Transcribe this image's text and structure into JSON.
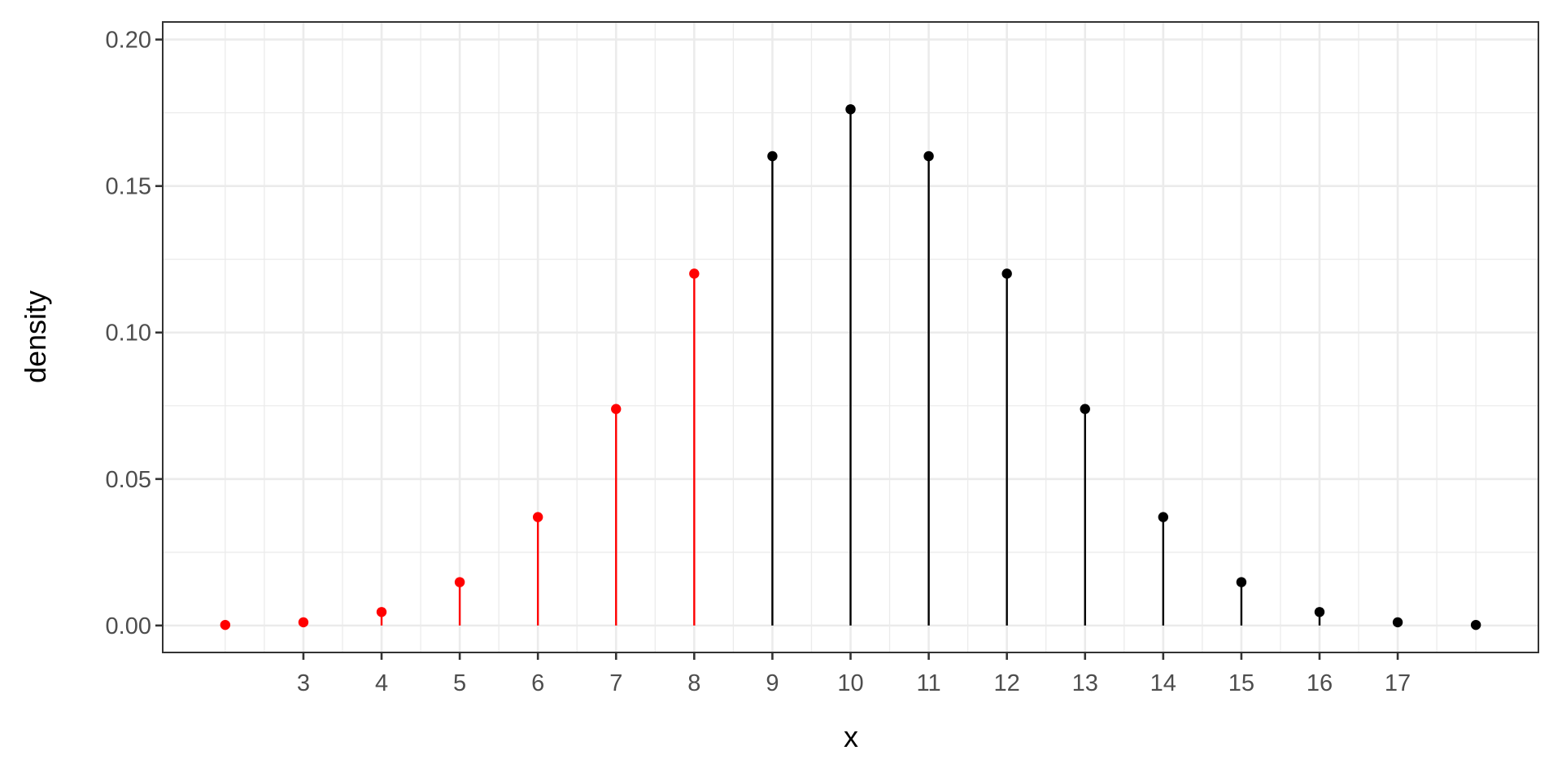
{
  "chart_data": {
    "type": "lollipop",
    "title": "",
    "xlabel": "x",
    "ylabel": "density",
    "xlim": [
      1.2,
      18.8
    ],
    "ylim": [
      -0.0092,
      0.206
    ],
    "x_ticks": [
      3,
      4,
      5,
      6,
      7,
      8,
      9,
      10,
      11,
      12,
      13,
      14,
      15,
      16,
      17
    ],
    "x_tick_labels": [
      "3",
      "4",
      "5",
      "6",
      "7",
      "8",
      "9",
      "10",
      "11",
      "12",
      "13",
      "14",
      "15",
      "16",
      "17"
    ],
    "x_minor_breaks": [
      2,
      2.5,
      3.5,
      4.5,
      5.5,
      6.5,
      7.5,
      8.5,
      9.5,
      10.5,
      11.5,
      12.5,
      13.5,
      14.5,
      15.5,
      16.5,
      17.5,
      18
    ],
    "y_ticks": [
      0,
      0.05,
      0.1,
      0.15,
      0.2
    ],
    "y_tick_labels": [
      "0.00",
      "0.05",
      "0.10",
      "0.15",
      "0.20"
    ],
    "y_minor_breaks": [
      0.025,
      0.075,
      0.125,
      0.175
    ],
    "grid": true,
    "theme": "bw",
    "colors": {
      "highlight": "#ff0000",
      "default": "#000000",
      "grid": "#ebebeb",
      "border": "#333333"
    },
    "points": [
      {
        "x": 2,
        "y": 0.0002,
        "color": "#ff0000"
      },
      {
        "x": 3,
        "y": 0.0011,
        "color": "#ff0000"
      },
      {
        "x": 4,
        "y": 0.0046,
        "color": "#ff0000"
      },
      {
        "x": 5,
        "y": 0.0148,
        "color": "#ff0000"
      },
      {
        "x": 6,
        "y": 0.037,
        "color": "#ff0000"
      },
      {
        "x": 7,
        "y": 0.0739,
        "color": "#ff0000"
      },
      {
        "x": 8,
        "y": 0.1201,
        "color": "#ff0000"
      },
      {
        "x": 9,
        "y": 0.1602,
        "color": "#000000"
      },
      {
        "x": 10,
        "y": 0.1762,
        "color": "#000000"
      },
      {
        "x": 11,
        "y": 0.1602,
        "color": "#000000"
      },
      {
        "x": 12,
        "y": 0.1201,
        "color": "#000000"
      },
      {
        "x": 13,
        "y": 0.0739,
        "color": "#000000"
      },
      {
        "x": 14,
        "y": 0.037,
        "color": "#000000"
      },
      {
        "x": 15,
        "y": 0.0148,
        "color": "#000000"
      },
      {
        "x": 16,
        "y": 0.0046,
        "color": "#000000"
      },
      {
        "x": 17,
        "y": 0.0011,
        "color": "#000000"
      },
      {
        "x": 18,
        "y": 0.0002,
        "color": "#000000"
      }
    ]
  }
}
